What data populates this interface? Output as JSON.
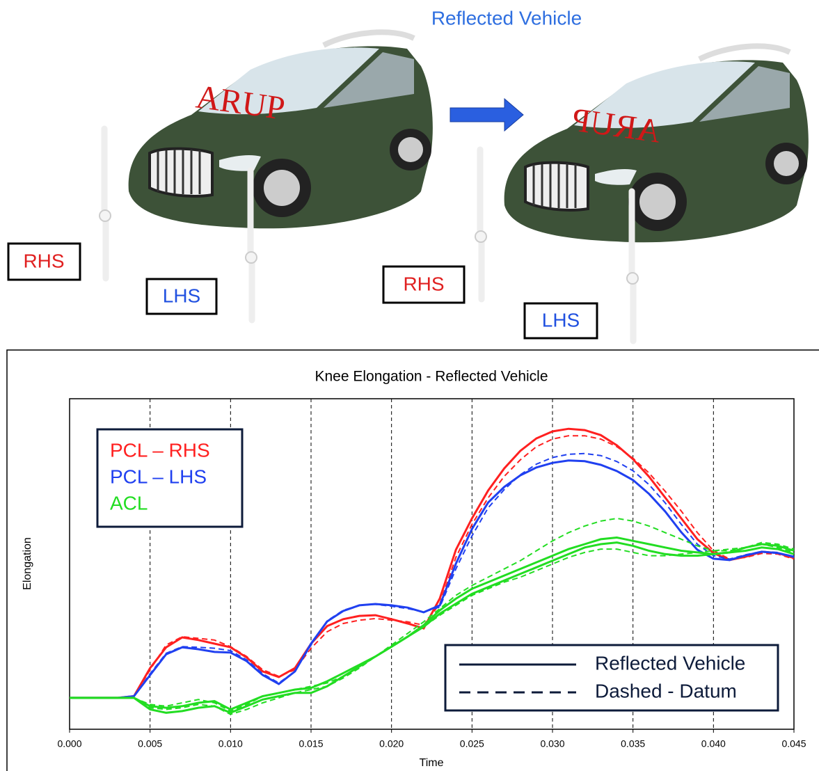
{
  "illustration": {
    "title": "Reflected Vehicle",
    "original": {
      "windshield": "ARUP",
      "rhs": "RHS",
      "lhs": "LHS"
    },
    "reflected": {
      "windshield": "ARUP",
      "rhs": "RHS",
      "lhs": "LHS"
    }
  },
  "chart_data": {
    "type": "line",
    "title": "Knee Elongation - Reflected Vehicle",
    "x_label": "Time",
    "y_label": "Elongation",
    "x": [
      0,
      0.001,
      0.002,
      0.003,
      0.004,
      0.005,
      0.006,
      0.007,
      0.008,
      0.009,
      0.01,
      0.011,
      0.012,
      0.013,
      0.014,
      0.015,
      0.016,
      0.017,
      0.018,
      0.019,
      0.02,
      0.021,
      0.022,
      0.023,
      0.024,
      0.025,
      0.026,
      0.027,
      0.028,
      0.029,
      0.03,
      0.031,
      0.032,
      0.033,
      0.034,
      0.035,
      0.036,
      0.037,
      0.038,
      0.039,
      0.04,
      0.041,
      0.042,
      0.043,
      0.044,
      0.045
    ],
    "xlim": [
      0,
      0.045
    ],
    "ylim": [
      0,
      100
    ],
    "xticks": [
      {
        "value": 0,
        "label": "0.000"
      },
      0.005,
      {
        "value": 0.01,
        "label": "0.010"
      },
      0.015,
      {
        "value": 0.02,
        "label": "0.020"
      },
      0.025,
      {
        "value": 0.03,
        "label": "0.030"
      },
      0.035,
      {
        "value": 0.04,
        "label": "0.040"
      },
      0.045
    ],
    "grid": true,
    "legend": "upper left",
    "style_legend_position": "lower right",
    "line_styles": [
      {
        "label": "Reflected Vehicle",
        "dashed": false
      },
      {
        "label": "Dashed - Datum",
        "dashed": true
      }
    ],
    "series": [
      {
        "name": "PCL – RHS",
        "color": "#ff2020",
        "lines": [
          {
            "dashed": false,
            "values": [
              9.5,
              9.5,
              9.5,
              9.5,
              10,
              18.5,
              24.8,
              27.8,
              27,
              25.9,
              24.8,
              21.7,
              17.5,
              15.8,
              18.5,
              25.9,
              31.2,
              33.3,
              34.3,
              34.5,
              33.3,
              32,
              30.5,
              39.6,
              54.3,
              63.8,
              72.2,
              78.9,
              84.2,
              88,
              90.1,
              90.9,
              90.5,
              89,
              85.9,
              81.7,
              76.4,
              70.1,
              63.8,
              57.5,
              53.3,
              51.2,
              52.2,
              53.7,
              53.3,
              51.8
            ]
          },
          {
            "dashed": true,
            "values": [
              9.5,
              9.5,
              9.5,
              9.5,
              10,
              18,
              25.5,
              28,
              27.5,
              27,
              25,
              22,
              18,
              16,
              18,
              24.5,
              29.5,
              32,
              33,
              33.5,
              33,
              32.5,
              31.5,
              38,
              52,
              62,
              70,
              76.5,
              81.5,
              85.5,
              87.8,
              88.8,
              88.8,
              87.8,
              85.5,
              82,
              77.5,
              72,
              66,
              59.5,
              54,
              51.5,
              52,
              53.2,
              53,
              51.5
            ]
          }
        ]
      },
      {
        "name": "PCL – LHS",
        "color": "#2040f0",
        "lines": [
          {
            "dashed": false,
            "values": [
              9.5,
              9.5,
              9.5,
              9.5,
              10,
              16.4,
              22.7,
              24.8,
              24.2,
              23.4,
              23.2,
              20.6,
              16.4,
              13.7,
              17.5,
              25.9,
              32.6,
              35.8,
              37.5,
              37.9,
              37.5,
              36.8,
              35.4,
              37.5,
              50.1,
              60.6,
              68.6,
              73.3,
              76.8,
              79.2,
              80.6,
              81.3,
              81.1,
              80,
              78.1,
              75.4,
              71.2,
              65.9,
              59.6,
              54.3,
              51.6,
              51.2,
              52.6,
              53.7,
              53.3,
              52.2
            ]
          },
          {
            "dashed": true,
            "values": [
              9.5,
              9.5,
              9.5,
              9.5,
              10,
              16.8,
              23,
              25,
              24.8,
              24.5,
              23.8,
              21,
              16.8,
              14,
              17.5,
              25.5,
              32.8,
              36,
              37.5,
              37.8,
              37.2,
              36.5,
              35.5,
              37,
              48.5,
              58.5,
              67,
              72.5,
              77,
              80.2,
              82.2,
              83.2,
              83.4,
              82.8,
              81,
              78.2,
              74,
              68.5,
              62,
              56,
              52.5,
              51.5,
              52.8,
              53.8,
              53.5,
              52
            ]
          }
        ]
      },
      {
        "name": "ACL",
        "color": "#22dd22",
        "lines": [
          {
            "dashed": false,
            "values": [
              9.5,
              9.5,
              9.5,
              9.5,
              9.5,
              6,
              5,
              5.5,
              6.5,
              7,
              5,
              7,
              9,
              10,
              11,
              11,
              13,
              16,
              19,
              22,
              25,
              28,
              31,
              35,
              38,
              41,
              43,
              45,
              47,
              49,
              51,
              53,
              55,
              56,
              56.5,
              55.5,
              54,
              53,
              52.5,
              52.5,
              53,
              53.5,
              54,
              55,
              54.5,
              53
            ]
          },
          {
            "dashed": false,
            "values": [
              9.5,
              9.5,
              9.5,
              9.5,
              9.5,
              7,
              6.5,
              7,
              8,
              8.5,
              6,
              8,
              10,
              11,
              12,
              12.5,
              14.5,
              17,
              19.5,
              22,
              25,
              28,
              31.5,
              36,
              39.5,
              42.5,
              44.5,
              46.5,
              48.5,
              50.5,
              52.5,
              54.5,
              56,
              57.5,
              58,
              57,
              56,
              55,
              54,
              53.5,
              53,
              53.5,
              55,
              56,
              55.5,
              54
            ]
          },
          {
            "dashed": true,
            "values": [
              9.5,
              9.5,
              9.5,
              9.5,
              9.5,
              6.5,
              6,
              6.5,
              7.5,
              7,
              4.5,
              6,
              8,
              9.5,
              11,
              12,
              13,
              15.5,
              18.5,
              22,
              25.5,
              29,
              32.5,
              36.5,
              40.5,
              43.5,
              46,
              48.5,
              51,
              54,
              57,
              59.5,
              61.5,
              63,
              63.8,
              63,
              61.5,
              59.5,
              57.5,
              55.5,
              54,
              54,
              55,
              56.5,
              56,
              54.5
            ]
          },
          {
            "dashed": true,
            "values": [
              9.5,
              9.5,
              9.5,
              9.5,
              9.5,
              7.5,
              7,
              8,
              9,
              8,
              5.5,
              7.5,
              10,
              11,
              12,
              13,
              14,
              16,
              19,
              22,
              25,
              28,
              31,
              34.5,
              37.5,
              40.5,
              42.5,
              44.5,
              46,
              48,
              50,
              52,
              53.5,
              54.5,
              54.5,
              53.5,
              52.5,
              52.5,
              53,
              53.5,
              54,
              54.5,
              55,
              56,
              55,
              53.5
            ]
          }
        ]
      }
    ]
  }
}
